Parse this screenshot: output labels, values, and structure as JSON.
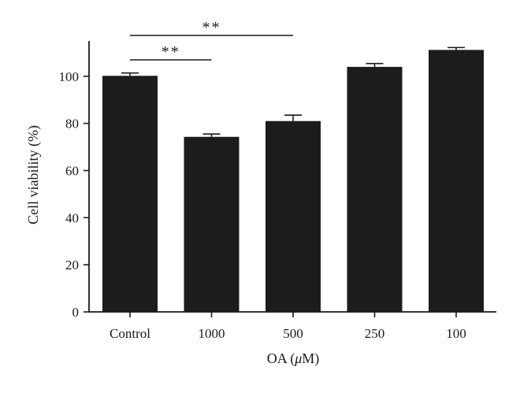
{
  "chart_data": {
    "type": "bar",
    "categories": [
      "Control",
      "1000",
      "500",
      "250",
      "100"
    ],
    "series": [
      {
        "values": [
          100.2,
          74.3,
          81.0,
          104.0,
          111.2
        ],
        "errors": [
          1.2,
          1.2,
          2.5,
          1.4,
          1.0
        ]
      }
    ],
    "xlabel_main": "OA (",
    "xlabel_unit": "μ",
    "xlabel_rest": "M)",
    "ylabel": "Cell viability (%)",
    "ylim": [
      0,
      115
    ],
    "yticks": [
      0,
      20,
      40,
      60,
      80,
      100
    ],
    "ytick_labels": [
      "0",
      "20",
      "40",
      "60",
      "80",
      "100"
    ],
    "grid": false,
    "bar_color": "#1c1c1c",
    "significance": [
      {
        "from": 0,
        "to": 1,
        "label": "**"
      },
      {
        "from": 0,
        "to": 2,
        "label": "**"
      }
    ]
  }
}
